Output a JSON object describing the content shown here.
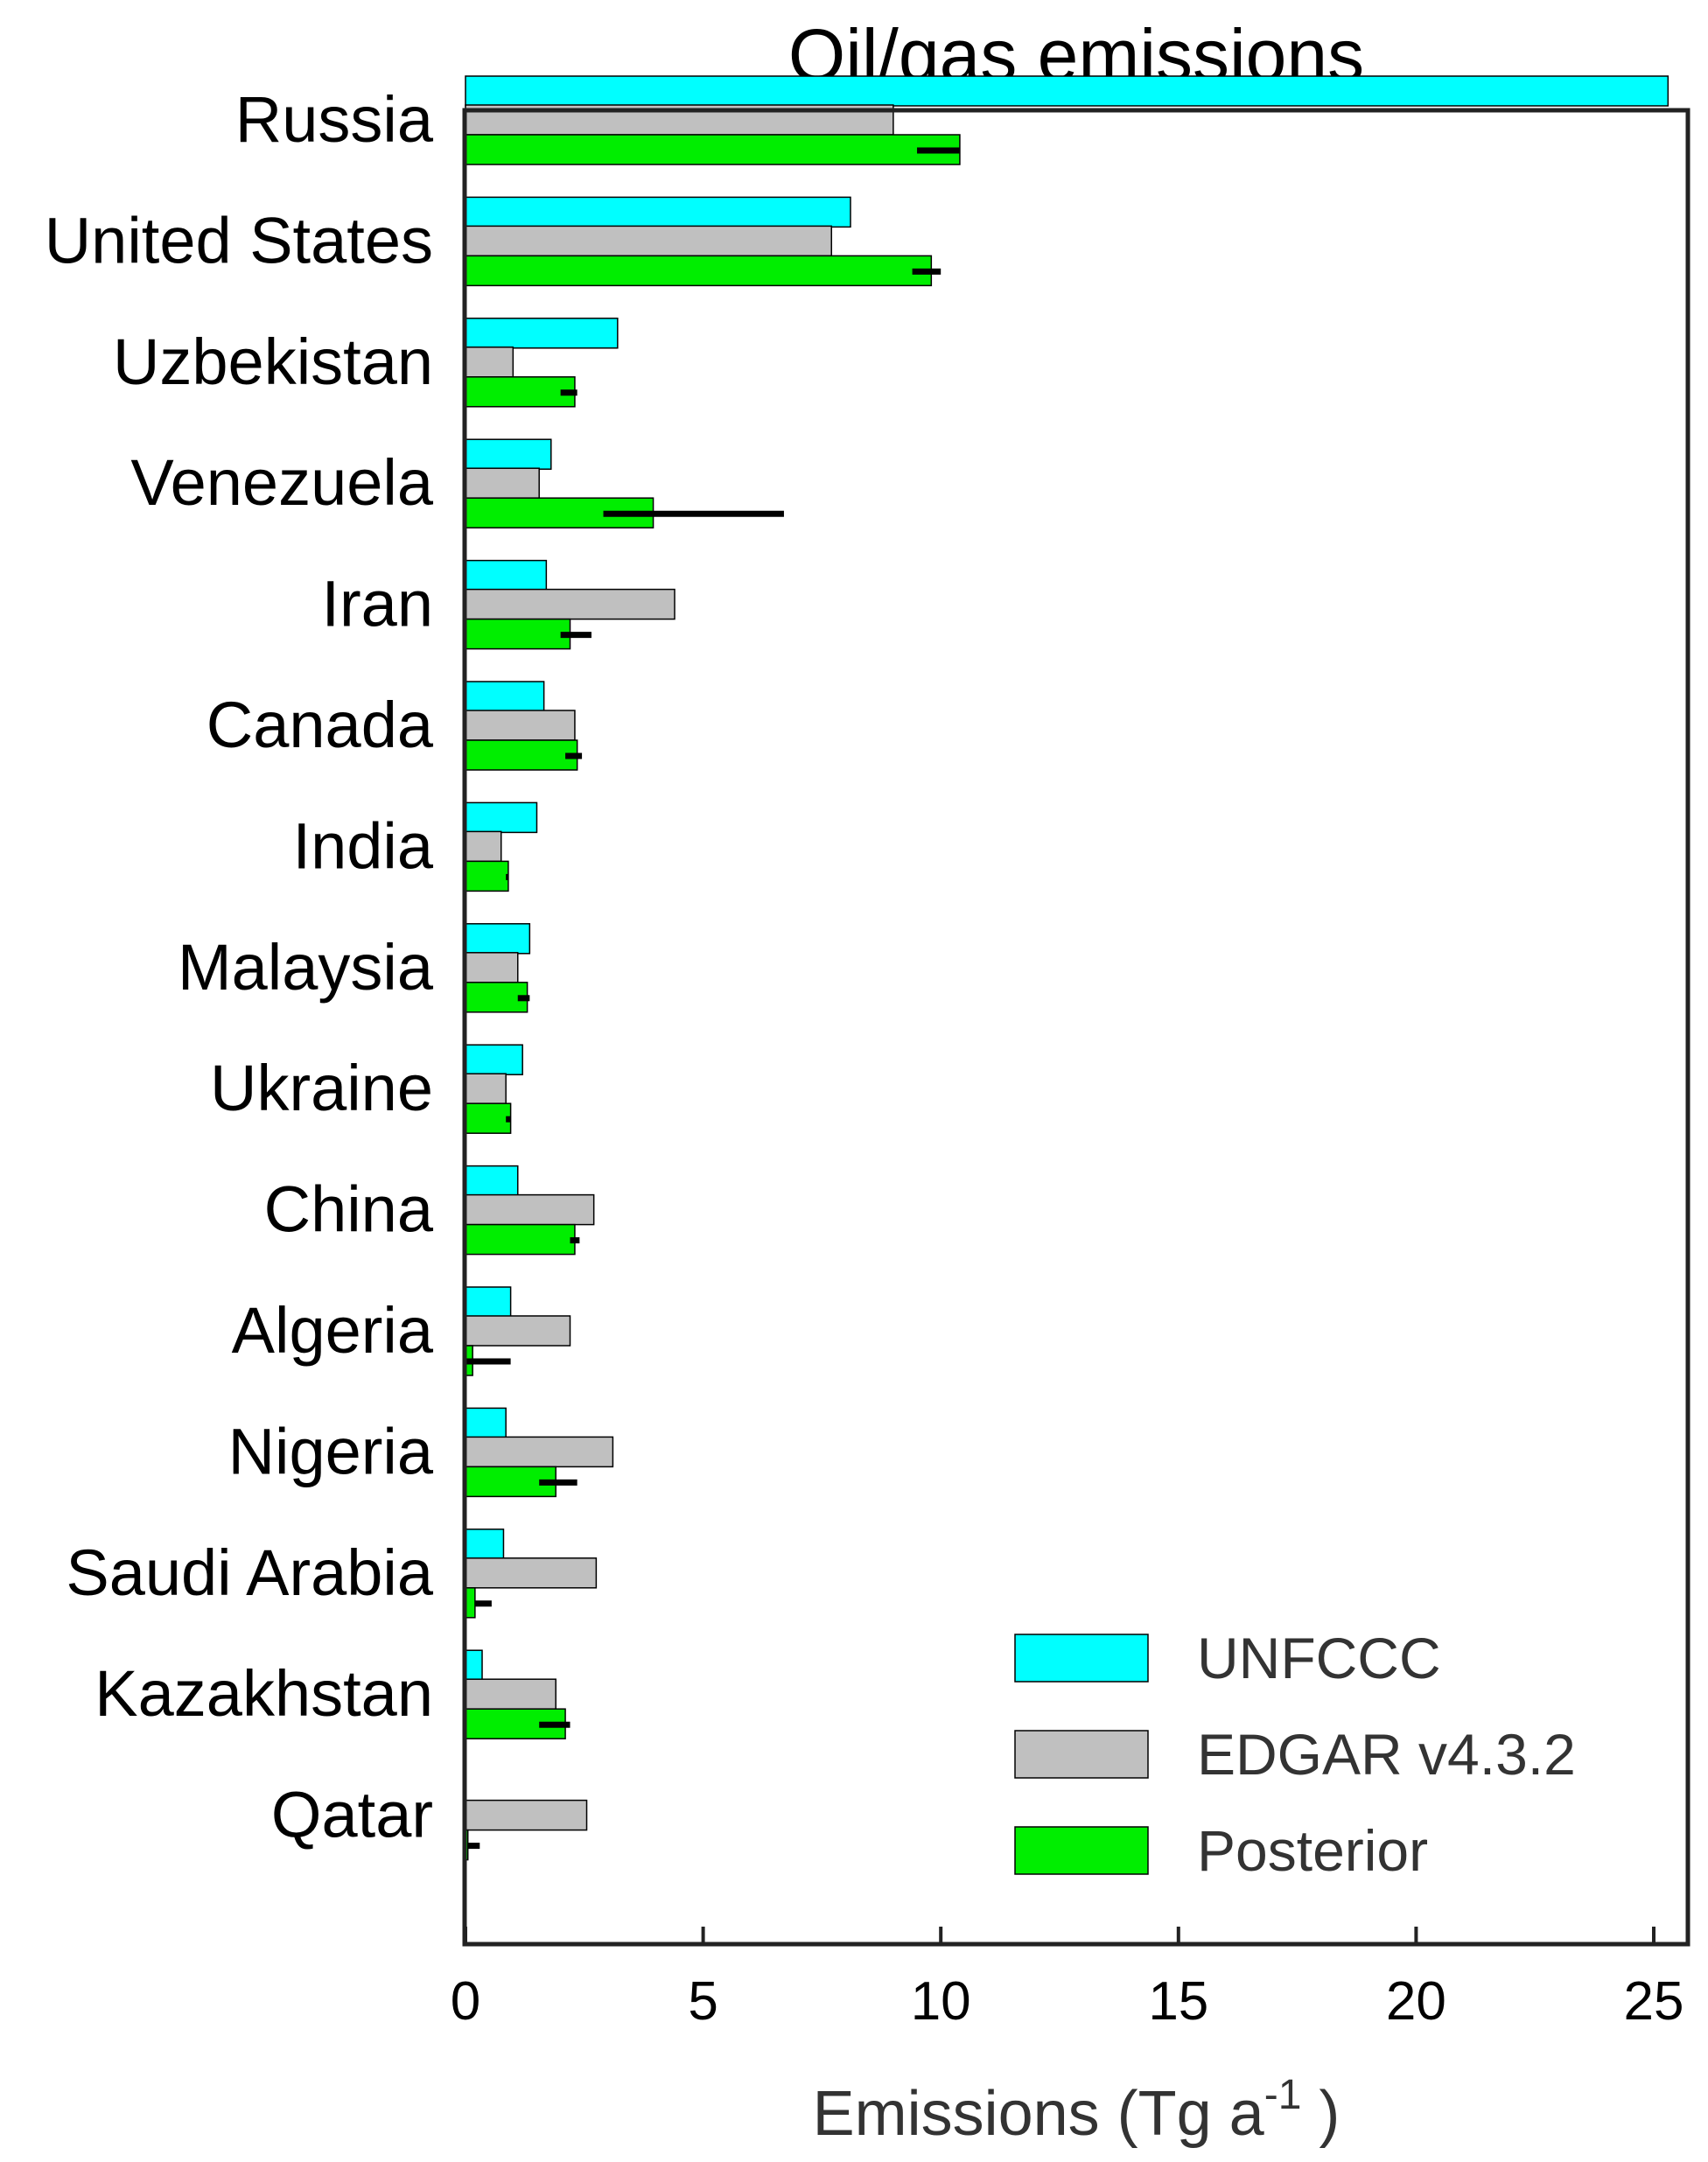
{
  "chart_data": {
    "type": "bar",
    "orientation": "horizontal",
    "title": "Oil/gas emissions",
    "xlabel": "Emissions (Tg a",
    "xlabel_superscript": "-1",
    "xlabel_suffix": " )",
    "ylabel": "",
    "xlim": [
      0,
      26
    ],
    "xticks": [
      0,
      5,
      10,
      15,
      20,
      25
    ],
    "grid": false,
    "legend_position": "bottom-right",
    "categories": [
      "Russia",
      "United States",
      "Uzbekistan",
      "Venezuela",
      "Iran",
      "Canada",
      "India",
      "Malaysia",
      "Ukraine",
      "China",
      "Algeria",
      "Nigeria",
      "Saudi Arabia",
      "Kazakhstan",
      "Qatar"
    ],
    "series": [
      {
        "name": "UNFCCC",
        "color": "#00ffff",
        "values": [
          25.3,
          8.1,
          3.2,
          1.8,
          1.7,
          1.65,
          1.5,
          1.35,
          1.2,
          1.1,
          0.95,
          0.85,
          0.8,
          0.35,
          0.0
        ]
      },
      {
        "name": "EDGAR v4.3.2",
        "color": "#c0c0c0",
        "values": [
          9.0,
          7.7,
          1.0,
          1.55,
          4.4,
          2.3,
          0.75,
          1.1,
          0.85,
          2.7,
          2.2,
          3.1,
          2.75,
          1.9,
          2.55
        ]
      },
      {
        "name": "Posterior",
        "color": "#00ee00",
        "values": [
          10.4,
          9.8,
          2.3,
          3.95,
          2.2,
          2.35,
          0.9,
          1.3,
          0.95,
          2.3,
          0.15,
          1.9,
          0.2,
          2.1,
          0.05
        ],
        "error_low": [
          9.5,
          9.4,
          2.0,
          2.9,
          2.0,
          2.1,
          0.85,
          1.1,
          0.85,
          2.2,
          0.0,
          1.55,
          0.2,
          1.55,
          0.05
        ],
        "error_high": [
          10.4,
          10.0,
          2.35,
          6.7,
          2.65,
          2.45,
          0.9,
          1.35,
          0.95,
          2.4,
          0.95,
          2.35,
          0.55,
          2.2,
          0.3
        ]
      }
    ]
  }
}
